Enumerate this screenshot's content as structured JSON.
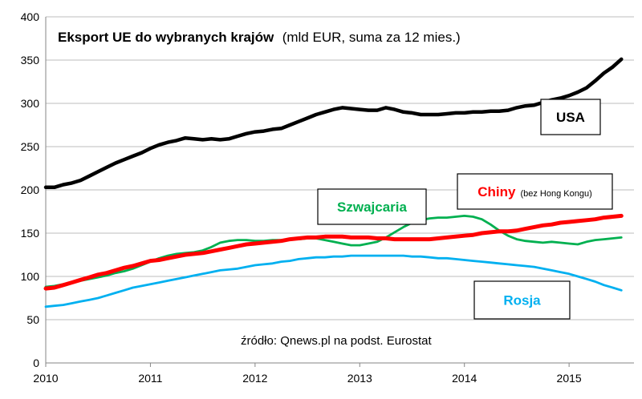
{
  "chart_data": {
    "type": "line",
    "title": "Eksport UE do wybranych krajów",
    "subtitle": "(mld EUR, suma za 12 mies.)",
    "source": "źródło: Qnews.pl na podst. Eurostat",
    "xlabel": "",
    "ylabel": "",
    "xlim": [
      2010,
      2015.5
    ],
    "ylim": [
      0,
      400
    ],
    "x_ticks": [
      "2010",
      "2011",
      "2012",
      "2013",
      "2014",
      "2015"
    ],
    "y_ticks": [
      "0",
      "50",
      "100",
      "150",
      "200",
      "250",
      "300",
      "350",
      "400"
    ],
    "grid": true,
    "x": [
      2010.0,
      2010.083,
      2010.167,
      2010.25,
      2010.333,
      2010.417,
      2010.5,
      2010.583,
      2010.667,
      2010.75,
      2010.833,
      2010.917,
      2011.0,
      2011.083,
      2011.167,
      2011.25,
      2011.333,
      2011.417,
      2011.5,
      2011.583,
      2011.667,
      2011.75,
      2011.833,
      2011.917,
      2012.0,
      2012.083,
      2012.167,
      2012.25,
      2012.333,
      2012.417,
      2012.5,
      2012.583,
      2012.667,
      2012.75,
      2012.833,
      2012.917,
      2013.0,
      2013.083,
      2013.167,
      2013.25,
      2013.333,
      2013.417,
      2013.5,
      2013.583,
      2013.667,
      2013.75,
      2013.833,
      2013.917,
      2014.0,
      2014.083,
      2014.167,
      2014.25,
      2014.333,
      2014.417,
      2014.5,
      2014.583,
      2014.667,
      2014.75,
      2014.833,
      2014.917,
      2015.0,
      2015.083,
      2015.167,
      2015.25,
      2015.333,
      2015.417,
      2015.5
    ],
    "series": [
      {
        "name": "USA",
        "color": "#000000",
        "values": [
          203,
          203,
          206,
          208,
          211,
          216,
          221,
          226,
          231,
          235,
          239,
          243,
          248,
          252,
          255,
          257,
          260,
          259,
          258,
          259,
          258,
          259,
          262,
          265,
          267,
          268,
          270,
          271,
          275,
          279,
          283,
          287,
          290,
          293,
          295,
          294,
          293,
          292,
          292,
          295,
          293,
          290,
          289,
          287,
          287,
          287,
          288,
          289,
          289,
          290,
          290,
          291,
          291,
          292,
          295,
          297,
          298,
          301,
          304,
          306,
          309,
          313,
          318,
          326,
          335,
          342,
          351
        ]
      },
      {
        "name": "Chiny",
        "note": "(bez Hong Kongu)",
        "color": "#ff0000",
        "values": [
          86,
          87,
          90,
          93,
          96,
          99,
          102,
          104,
          107,
          110,
          112,
          115,
          118,
          119,
          121,
          123,
          125,
          126,
          127,
          129,
          131,
          133,
          135,
          137,
          138,
          139,
          140,
          141,
          143,
          144,
          145,
          145,
          146,
          146,
          146,
          145,
          145,
          145,
          144,
          144,
          143,
          143,
          143,
          143,
          143,
          144,
          145,
          146,
          147,
          148,
          150,
          151,
          152,
          152,
          153,
          155,
          157,
          159,
          160,
          162,
          163,
          164,
          165,
          166,
          168,
          169,
          170
        ]
      },
      {
        "name": "Szwajcaria",
        "color": "#00b050",
        "values": [
          88,
          89,
          91,
          93,
          95,
          97,
          99,
          101,
          104,
          106,
          109,
          113,
          117,
          121,
          124,
          126,
          127,
          128,
          130,
          134,
          139,
          141,
          142,
          142,
          141,
          141,
          142,
          142,
          143,
          143,
          144,
          144,
          142,
          140,
          138,
          136,
          136,
          138,
          140,
          145,
          151,
          157,
          162,
          165,
          167,
          168,
          168,
          169,
          170,
          169,
          166,
          160,
          153,
          147,
          143,
          141,
          140,
          139,
          140,
          139,
          138,
          137,
          140,
          142,
          143,
          144,
          145
        ]
      },
      {
        "name": "Rosja",
        "color": "#00b0f0",
        "values": [
          65,
          66,
          67,
          69,
          71,
          73,
          75,
          78,
          81,
          84,
          87,
          89,
          91,
          93,
          95,
          97,
          99,
          101,
          103,
          105,
          107,
          108,
          109,
          111,
          113,
          114,
          115,
          117,
          118,
          120,
          121,
          122,
          122,
          123,
          123,
          124,
          124,
          124,
          124,
          124,
          124,
          124,
          123,
          123,
          122,
          121,
          121,
          120,
          119,
          118,
          117,
          116,
          115,
          114,
          113,
          112,
          111,
          109,
          107,
          105,
          103,
          100,
          97,
          94,
          90,
          87,
          84
        ]
      }
    ],
    "labels": [
      {
        "series": "USA",
        "text": "USA",
        "text_color": "#000000"
      },
      {
        "series": "Chiny",
        "text": "Chiny",
        "note": "(bez Hong Kongu)",
        "text_color": "#ff0000"
      },
      {
        "series": "Szwajcaria",
        "text": "Szwajcaria",
        "text_color": "#00b050"
      },
      {
        "series": "Rosja",
        "text": "Rosja",
        "text_color": "#00b0f0"
      }
    ]
  }
}
